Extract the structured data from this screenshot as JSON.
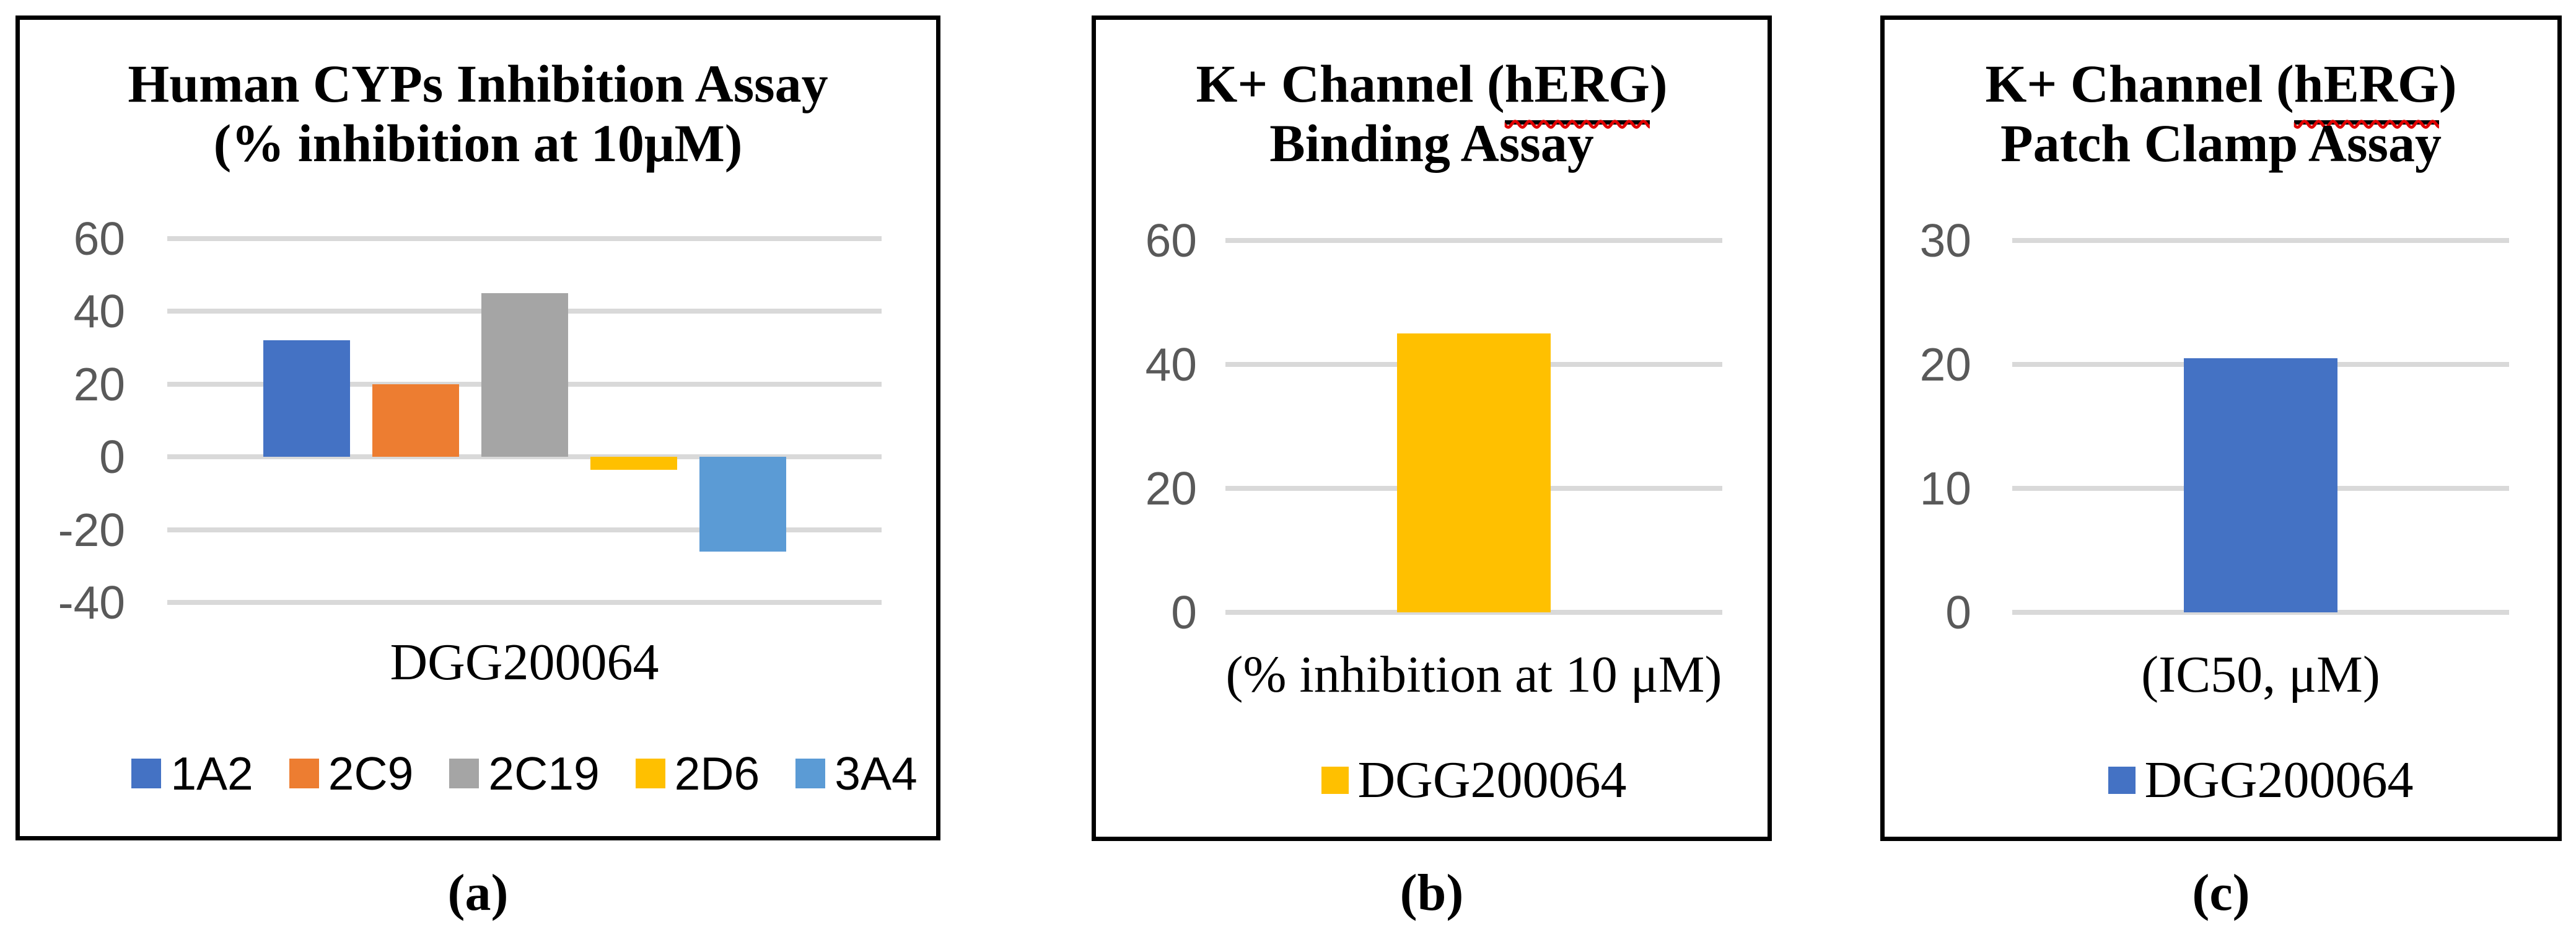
{
  "colors": {
    "blue": "#4472C4",
    "orange": "#ED7D31",
    "gray": "#A5A5A5",
    "yellow": "#FFC000",
    "light_blue": "#5B9BD5",
    "gridline": "#D9D9D9",
    "tick_text": "#595959",
    "squiggle_red": "#E00000",
    "border_black": "#000000"
  },
  "panel_a": {
    "title_line1": "Human CYPs Inhibition Assay",
    "title_line2": "(% inhibition at 10μM)",
    "x_category_label": "DGG200064",
    "caption": "(a)",
    "legend": [
      {
        "label": "1A2",
        "color": "#4472C4"
      },
      {
        "label": "2C9",
        "color": "#ED7D31"
      },
      {
        "label": "2C19",
        "color": "#A5A5A5"
      },
      {
        "label": "2D6",
        "color": "#FFC000"
      },
      {
        "label": "3A4",
        "color": "#5B9BD5"
      }
    ]
  },
  "panel_b": {
    "title_line1_pre": "K+ Channel (",
    "title_line1_word": "hERG",
    "title_line1_post": ")",
    "title_line2": "Binding Assay",
    "x_axis_label": "(% inhibition at 10 μM)",
    "caption": "(b)",
    "legend": [
      {
        "label": "DGG200064",
        "color": "#FFC000"
      }
    ]
  },
  "panel_c": {
    "title_line1_pre": "K+ Channel (",
    "title_line1_word": "hERG",
    "title_line1_post": ")",
    "title_line2": "Patch Clamp Assay",
    "x_axis_label": "(IC50, μM)",
    "caption": "(c)",
    "legend": [
      {
        "label": "DGG200064",
        "color": "#4472C4"
      }
    ]
  },
  "chart_data": [
    {
      "panel": "a",
      "type": "bar",
      "title": "Human CYPs Inhibition Assay (% inhibition at 10μM)",
      "categories": [
        "1A2",
        "2C9",
        "2C19",
        "2D6",
        "3A4"
      ],
      "values": [
        32,
        20,
        45,
        -3.5,
        -26
      ],
      "series_colors": [
        "#4472C4",
        "#ED7D31",
        "#A5A5A5",
        "#FFC000",
        "#5B9BD5"
      ],
      "x_category": "DGG200064",
      "xlabel": "DGG200064",
      "ylabel": "",
      "yticks": [
        60,
        40,
        20,
        0,
        -20,
        -40
      ],
      "ylim": [
        -40,
        60
      ],
      "grid": true,
      "legend_position": "bottom"
    },
    {
      "panel": "b",
      "type": "bar",
      "title": "K+ Channel (hERG) Binding Assay",
      "categories": [
        "DGG200064"
      ],
      "values": [
        45
      ],
      "series_colors": [
        "#FFC000"
      ],
      "xlabel": "(% inhibition at 10 μM)",
      "ylabel": "",
      "yticks": [
        60,
        40,
        20,
        0
      ],
      "ylim": [
        0,
        60
      ],
      "grid": true,
      "legend_position": "bottom"
    },
    {
      "panel": "c",
      "type": "bar",
      "title": "K+ Channel (hERG) Patch Clamp Assay",
      "categories": [
        "DGG200064"
      ],
      "values": [
        20.5
      ],
      "series_colors": [
        "#4472C4"
      ],
      "xlabel": "(IC50, μM)",
      "ylabel": "",
      "yticks": [
        30,
        20,
        10,
        0
      ],
      "ylim": [
        0,
        30
      ],
      "grid": true,
      "legend_position": "bottom"
    }
  ]
}
